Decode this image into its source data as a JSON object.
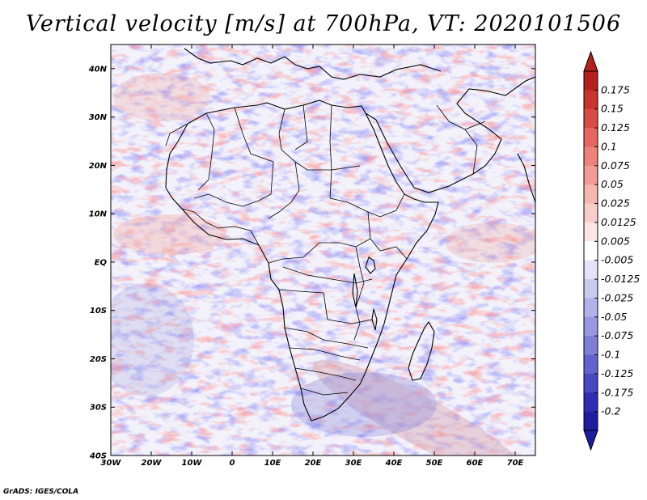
{
  "title": "Vertical velocity [m/s] at 700hPa, VT: 2020101506",
  "credit": "GrADS: IGES/COLA",
  "map": {
    "lat_labels": [
      "40N",
      "30N",
      "20N",
      "10N",
      "EQ",
      "10S",
      "20S",
      "30S",
      "40S"
    ],
    "lon_labels": [
      "30W",
      "20W",
      "10W",
      "0",
      "10E",
      "20E",
      "30E",
      "40E",
      "50E",
      "60E",
      "70E"
    ],
    "lat_range": [
      -40,
      45
    ],
    "lon_range": [
      -30,
      75
    ]
  },
  "colorbar": {
    "labels": [
      "0.175",
      "0.15",
      "0.125",
      "0.1",
      "0.075",
      "0.05",
      "0.025",
      "0.0125",
      "0.005",
      "-0.005",
      "-0.0125",
      "-0.025",
      "-0.05",
      "-0.075",
      "-0.1",
      "-0.125",
      "-0.175",
      "-0.2"
    ],
    "colors": [
      "#b3211c",
      "#c8342e",
      "#d84c45",
      "#e4665e",
      "#ec827a",
      "#f29c95",
      "#f6b6b0",
      "#f9cec9",
      "#fce6e3",
      "#ffffff",
      "#e3e3f7",
      "#cbcbf1",
      "#b2b2ea",
      "#9898e2",
      "#7e7ed9",
      "#6363cf",
      "#4848c2",
      "#2e2eb3",
      "#1d1da0"
    ]
  }
}
